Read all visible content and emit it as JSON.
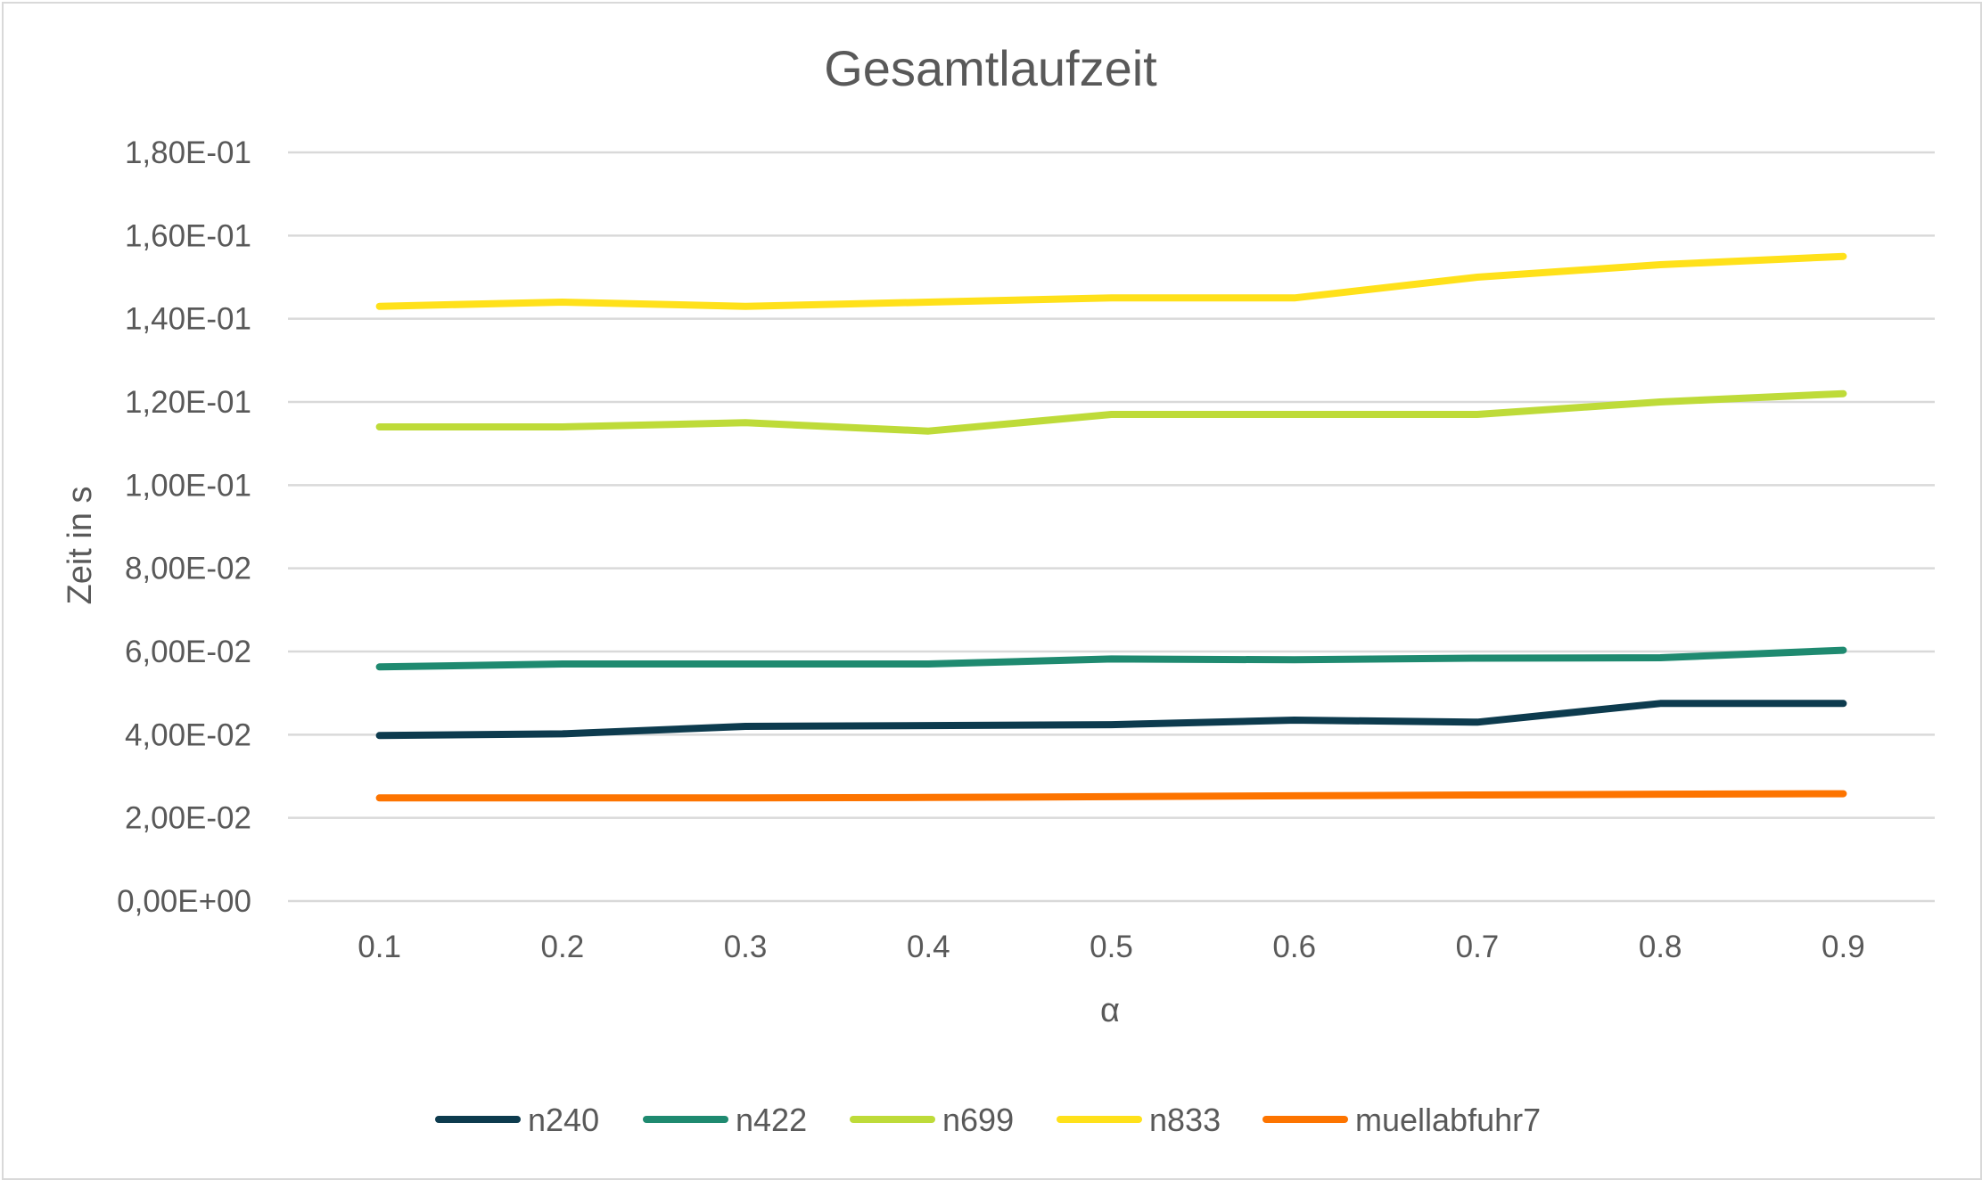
{
  "chart_data": {
    "type": "line",
    "title": "Gesamtlaufzeit",
    "xlabel": "α",
    "ylabel": "Zeit in s",
    "categories": [
      "0.1",
      "0.2",
      "0.3",
      "0.4",
      "0.5",
      "0.6",
      "0.7",
      "0.8",
      "0.9"
    ],
    "ylim": [
      0,
      0.18
    ],
    "yticks": [
      0,
      0.02,
      0.04,
      0.06,
      0.08,
      0.1,
      0.12,
      0.14,
      0.16,
      0.18
    ],
    "ytick_labels": [
      "0,00E+00",
      "2,00E-02",
      "4,00E-02",
      "6,00E-02",
      "8,00E-02",
      "1,00E-01",
      "1,20E-01",
      "1,40E-01",
      "1,60E-01",
      "1,80E-01"
    ],
    "grid": true,
    "legend_position": "bottom",
    "series": [
      {
        "name": "n240",
        "color": "#0d3b4e",
        "values": [
          0.0398,
          0.0402,
          0.042,
          0.0422,
          0.0424,
          0.0435,
          0.043,
          0.0475,
          0.0475
        ]
      },
      {
        "name": "n422",
        "color": "#1f8a70",
        "values": [
          0.0563,
          0.057,
          0.057,
          0.057,
          0.0582,
          0.058,
          0.0584,
          0.0585,
          0.0603
        ]
      },
      {
        "name": "n699",
        "color": "#bedb39",
        "values": [
          0.114,
          0.114,
          0.115,
          0.113,
          0.117,
          0.117,
          0.117,
          0.12,
          0.122
        ]
      },
      {
        "name": "n833",
        "color": "#ffe11a",
        "values": [
          0.143,
          0.144,
          0.143,
          0.144,
          0.145,
          0.145,
          0.15,
          0.153,
          0.155
        ]
      },
      {
        "name": "muellabfuhr7",
        "color": "#fd7400",
        "values": [
          0.0248,
          0.0248,
          0.0248,
          0.0249,
          0.0251,
          0.0253,
          0.0255,
          0.0257,
          0.0258
        ]
      }
    ]
  }
}
